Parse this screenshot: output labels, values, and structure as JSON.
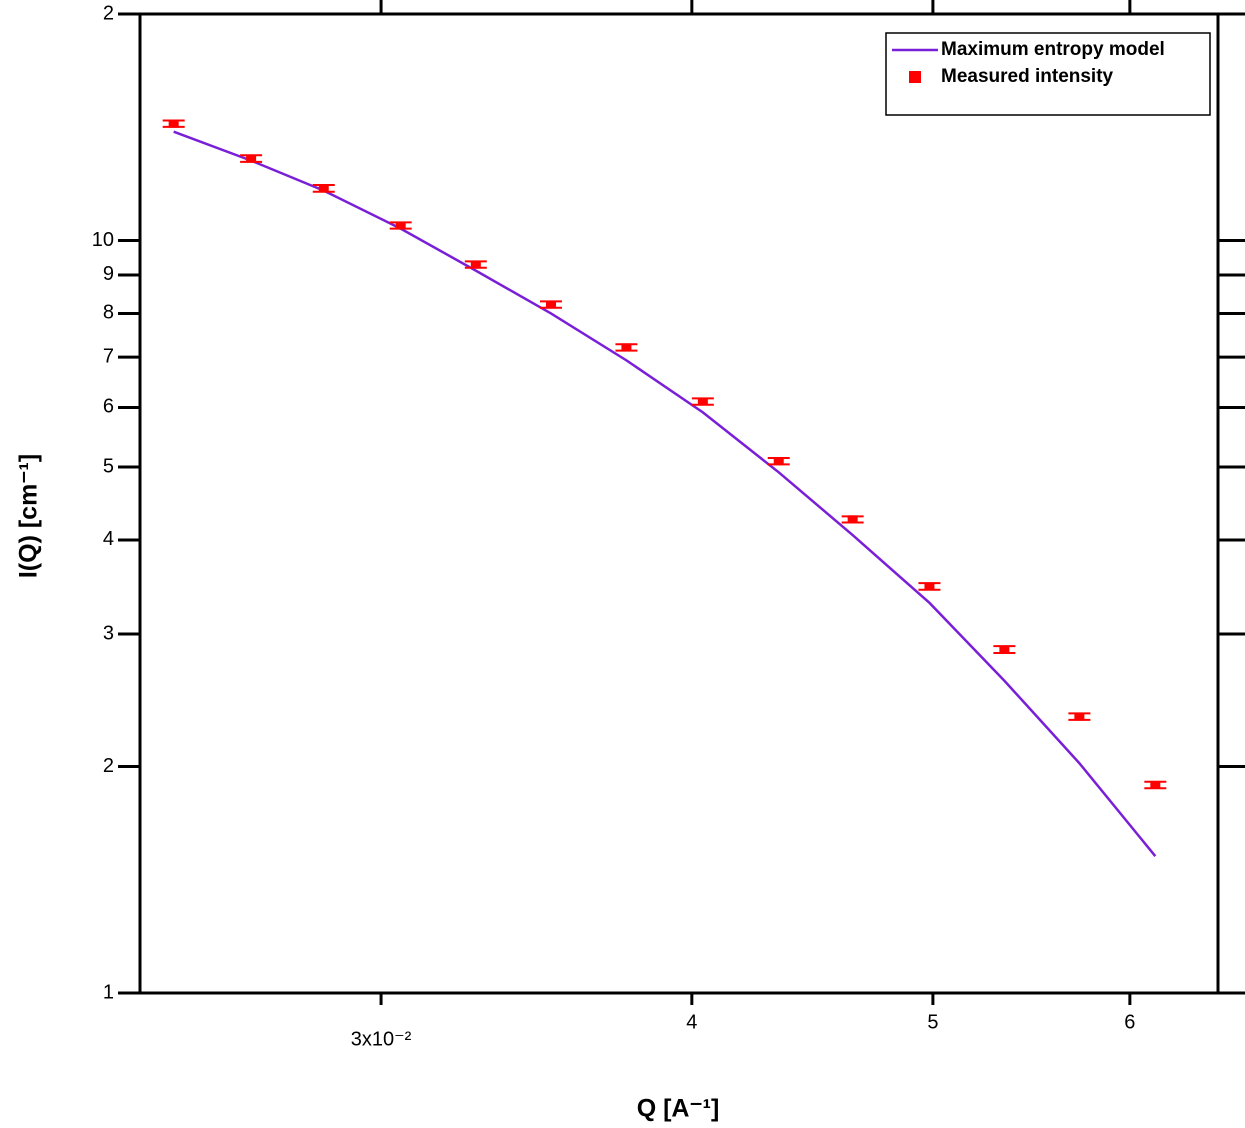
{
  "chart_data": {
    "type": "line",
    "xlabel": "Q [A⁻¹]",
    "ylabel": "I(Q) [cm⁻¹]",
    "xscale": "log",
    "yscale": "log",
    "xlim": [
      0.024,
      0.0651
    ],
    "ylim": [
      1,
      20
    ],
    "xticks": [
      {
        "value": 0.03,
        "label": "3x10⁻²"
      },
      {
        "value": 0.04,
        "label": "4"
      },
      {
        "value": 0.05,
        "label": "5"
      },
      {
        "value": 0.06,
        "label": "6"
      }
    ],
    "yticks": [
      1,
      2,
      3,
      4,
      5,
      6,
      7,
      8,
      9,
      10,
      {
        "value": 20,
        "label": "2"
      }
    ],
    "legend": "upper right",
    "x": [
      0.02476,
      0.0266,
      0.02845,
      0.03055,
      0.03275,
      0.03511,
      0.03765,
      0.04041,
      0.04335,
      0.04642,
      0.04984,
      0.05342,
      0.05726,
      0.06143
    ],
    "series": [
      {
        "name": "Maximum entropy model",
        "type": "line",
        "color": "#7a1fd8",
        "values": [
          13.95,
          12.77,
          11.65,
          10.37,
          9.12,
          8.0,
          6.93,
          5.91,
          4.92,
          4.06,
          3.3,
          2.6,
          2.02,
          1.52
        ]
      },
      {
        "name": "Measured intensity",
        "type": "scatter",
        "color": "#ff0000",
        "values": [
          14.3,
          12.85,
          11.73,
          10.47,
          9.29,
          8.22,
          7.21,
          6.11,
          5.09,
          4.26,
          3.47,
          2.86,
          2.33,
          1.89
        ],
        "errors": [
          0.14,
          0.13,
          0.12,
          0.1,
          0.09,
          0.08,
          0.07,
          0.06,
          0.05,
          0.04,
          0.035,
          0.03,
          0.023,
          0.019
        ]
      }
    ]
  }
}
